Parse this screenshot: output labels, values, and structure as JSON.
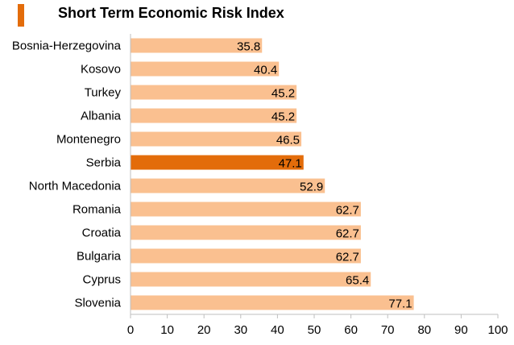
{
  "colors": {
    "accent": "#e36c0a",
    "bar": "#fac090",
    "highlight_bar": "#e36c0a",
    "axis": "#bfbfbf"
  },
  "chart_data": {
    "type": "bar",
    "orientation": "horizontal",
    "title": "Short Term Economic Risk Index",
    "categories": [
      "Bosnia-Herzegovina",
      "Kosovo",
      "Turkey",
      "Albania",
      "Montenegro",
      "Serbia",
      "North Macedonia",
      "Romania",
      "Croatia",
      "Bulgaria",
      "Cyprus",
      "Slovenia"
    ],
    "values": [
      35.8,
      40.4,
      45.2,
      45.2,
      46.5,
      47.1,
      52.9,
      62.7,
      62.7,
      62.7,
      65.4,
      77.1
    ],
    "value_labels": [
      "35.8",
      "40.4",
      "45.2",
      "45.2",
      "46.5",
      "47.1",
      "52.9",
      "62.7",
      "62.7",
      "62.7",
      "65.4",
      "77.1"
    ],
    "highlight": "Serbia",
    "xlim": [
      0,
      100
    ],
    "xticks": [
      "0",
      "10",
      "20",
      "30",
      "40",
      "50",
      "60",
      "70",
      "80",
      "90",
      "100"
    ],
    "xlabel": "",
    "ylabel": "",
    "grid": false,
    "legend": "none"
  }
}
